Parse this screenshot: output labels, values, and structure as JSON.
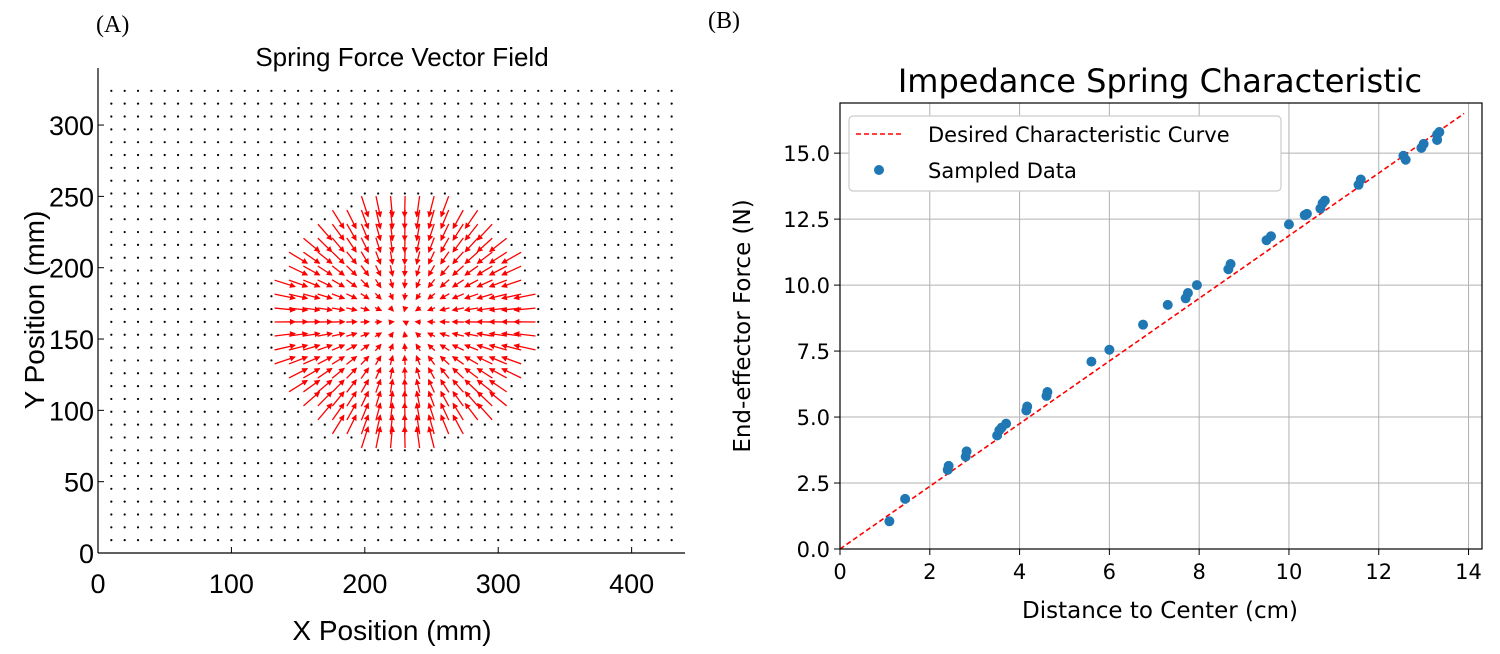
{
  "chart_data": [
    {
      "type": "quiver",
      "panel_label": "(A)",
      "title": "Spring Force Vector Field",
      "xlabel": "X Position (mm)",
      "ylabel": "Y Position (mm)",
      "xlim": [
        0,
        440
      ],
      "ylim": [
        0,
        340
      ],
      "xticks": [
        0,
        100,
        200,
        300,
        400
      ],
      "yticks": [
        0,
        50,
        100,
        150,
        200,
        250,
        300
      ],
      "grid_x": {
        "start": 10,
        "stop": 430,
        "step": 10
      },
      "grid_y": {
        "start": 9,
        "stop": 324,
        "step": 9
      },
      "field_center": [
        228,
        163
      ],
      "field_radius": [
        96,
        86
      ],
      "arrow_color": "#ff0000",
      "dot_color": "#000000"
    },
    {
      "type": "scatter",
      "panel_label": "(B)",
      "title": "Impedance Spring Characteristic",
      "xlabel": "Distance to Center (cm)",
      "ylabel": "End-effector Force (N)",
      "xlim": [
        0,
        14.3
      ],
      "ylim": [
        0,
        16.9
      ],
      "xticks": [
        "0",
        "2",
        "4",
        "6",
        "8",
        "10",
        "12",
        "14"
      ],
      "xtick_values": [
        0,
        2,
        4,
        6,
        8,
        10,
        12,
        14
      ],
      "yticks": [
        "0.0",
        "2.5",
        "5.0",
        "7.5",
        "10.0",
        "12.5",
        "15.0"
      ],
      "ytick_values": [
        0,
        2.5,
        5,
        7.5,
        10,
        12.5,
        15
      ],
      "grid": true,
      "legend_position": "top-left",
      "series": [
        {
          "name": "Desired Characteristic Curve",
          "kind": "dashed-line",
          "color": "#ff0000",
          "x": [
            0,
            13.9
          ],
          "y": [
            0,
            16.5
          ]
        },
        {
          "name": "Sampled Data",
          "kind": "points",
          "color": "#1f77b4",
          "x": [
            1.1,
            1.45,
            2.4,
            2.42,
            2.8,
            2.82,
            3.5,
            3.55,
            3.6,
            3.7,
            4.15,
            4.17,
            4.6,
            4.62,
            5.6,
            6.0,
            6.75,
            7.3,
            7.7,
            7.75,
            7.95,
            8.65,
            8.7,
            9.5,
            9.6,
            10.0,
            10.35,
            10.4,
            10.7,
            10.75,
            10.8,
            11.55,
            11.6,
            12.55,
            12.6,
            12.95,
            13.0,
            13.3,
            13.3,
            13.35
          ],
          "y": [
            1.05,
            1.9,
            3.0,
            3.15,
            3.5,
            3.7,
            4.3,
            4.5,
            4.6,
            4.75,
            5.25,
            5.4,
            5.8,
            5.95,
            7.1,
            7.55,
            8.5,
            9.25,
            9.5,
            9.7,
            10.0,
            10.6,
            10.8,
            11.7,
            11.85,
            12.3,
            12.65,
            12.7,
            12.9,
            13.1,
            13.2,
            13.8,
            14.0,
            14.9,
            14.75,
            15.2,
            15.35,
            15.5,
            15.7,
            15.8
          ]
        }
      ]
    }
  ]
}
